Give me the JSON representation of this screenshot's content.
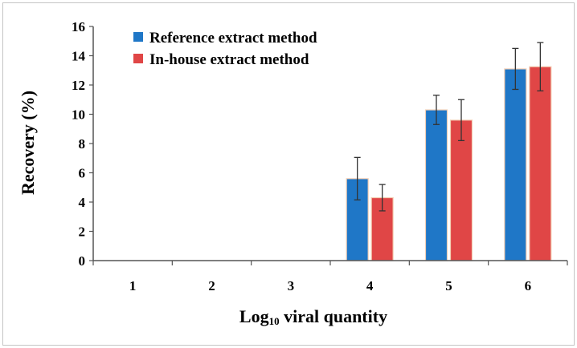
{
  "chart_data": {
    "type": "bar",
    "categories": [
      "1",
      "2",
      "3",
      "4",
      "5",
      "6"
    ],
    "series": [
      {
        "name": "Reference extract method",
        "values": [
          null,
          null,
          null,
          5.6,
          10.3,
          13.1
        ],
        "errors": [
          null,
          null,
          null,
          1.45,
          1.0,
          1.4
        ],
        "color": "#1f77c7"
      },
      {
        "name": "In-house extract method",
        "values": [
          null,
          null,
          null,
          4.3,
          9.6,
          13.25
        ],
        "errors": [
          null,
          null,
          null,
          0.9,
          1.4,
          1.65
        ],
        "color": "#e04646"
      }
    ],
    "xlabel_main": "Log",
    "xlabel_sub": "10",
    "xlabel_rest": " viral quantity",
    "ylabel": "Recovery (%)",
    "ylim": [
      0,
      16
    ],
    "yticks": [
      0,
      2,
      4,
      6,
      8,
      10,
      12,
      14,
      16
    ],
    "grid": false,
    "legend_position": "top-left"
  }
}
